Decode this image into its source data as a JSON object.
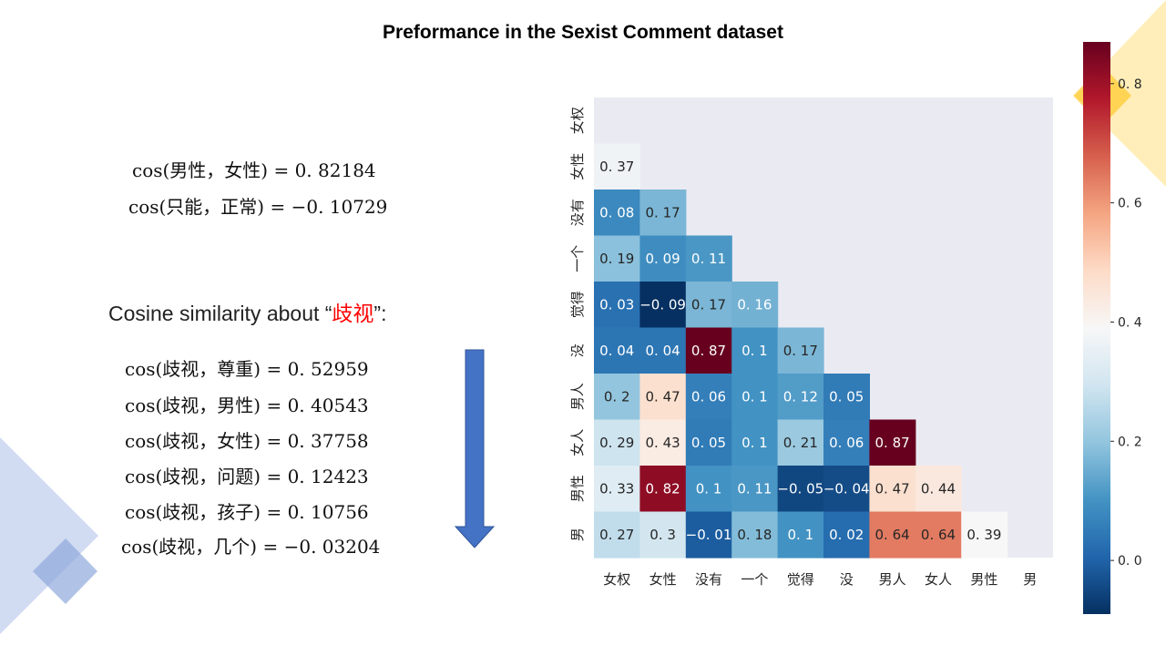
{
  "slide": {
    "title": "Preformance in the Sexist Comment dataset"
  },
  "formulas_top": [
    "cos(男性，女性) = 0. 82184",
    "cos(只能，正常) = −0. 10729"
  ],
  "subheading": {
    "prefix": "Cosine similarity about “",
    "keyword": "歧视",
    "suffix": "”:"
  },
  "formulas_list": [
    "cos(歧视，尊重) = 0. 52959",
    "cos(歧视，男性) = 0. 40543",
    "cos(歧视，女性) = 0. 37758",
    "cos(歧视，问题) = 0. 12423",
    "cos(歧视，孩子) = 0. 10756",
    "cos(歧视，几个) = −0. 03204"
  ],
  "colors": {
    "arrow": "#4472c4",
    "heatmap_bg": "#eaeaf2",
    "decor_blue": "#c9d5f0",
    "decor_yellow": "#ffd966",
    "keyword": "#ff0000"
  },
  "chart_data": {
    "type": "heatmap",
    "mask": "upper-triangle-including-diagonal",
    "labels": [
      "女权",
      "女性",
      "没有",
      "一个",
      "觉得",
      "没",
      "男人",
      "女人",
      "男性",
      "男"
    ],
    "matrix": [
      [
        null,
        null,
        null,
        null,
        null,
        null,
        null,
        null,
        null,
        null
      ],
      [
        0.37,
        null,
        null,
        null,
        null,
        null,
        null,
        null,
        null,
        null
      ],
      [
        0.08,
        0.17,
        null,
        null,
        null,
        null,
        null,
        null,
        null,
        null
      ],
      [
        0.19,
        0.09,
        0.11,
        null,
        null,
        null,
        null,
        null,
        null,
        null
      ],
      [
        0.03,
        -0.09,
        0.17,
        0.16,
        null,
        null,
        null,
        null,
        null,
        null
      ],
      [
        0.04,
        0.04,
        0.87,
        0.1,
        0.17,
        null,
        null,
        null,
        null,
        null
      ],
      [
        0.2,
        0.47,
        0.06,
        0.1,
        0.12,
        0.05,
        null,
        null,
        null,
        null
      ],
      [
        0.29,
        0.43,
        0.05,
        0.1,
        0.21,
        0.06,
        0.87,
        null,
        null,
        null
      ],
      [
        0.33,
        0.82,
        0.1,
        0.11,
        -0.05,
        -0.04,
        0.47,
        0.44,
        null,
        null
      ],
      [
        0.27,
        0.3,
        -0.01,
        0.18,
        0.1,
        0.02,
        0.64,
        0.64,
        0.39,
        null
      ]
    ],
    "cell_text": [
      [
        null,
        null,
        null,
        null,
        null,
        null,
        null,
        null,
        null,
        null
      ],
      [
        "0. 37",
        null,
        null,
        null,
        null,
        null,
        null,
        null,
        null,
        null
      ],
      [
        "0. 08",
        "0. 17",
        null,
        null,
        null,
        null,
        null,
        null,
        null,
        null
      ],
      [
        "0. 19",
        "0. 09",
        "0. 11",
        null,
        null,
        null,
        null,
        null,
        null,
        null
      ],
      [
        "0. 03",
        "−0. 09",
        "0. 17",
        "0. 16",
        null,
        null,
        null,
        null,
        null,
        null
      ],
      [
        "0. 04",
        "0. 04",
        "0. 87",
        "0. 1",
        "0. 17",
        null,
        null,
        null,
        null,
        null
      ],
      [
        "0. 2",
        "0. 47",
        "0. 06",
        "0. 1",
        "0. 12",
        "0. 05",
        null,
        null,
        null,
        null
      ],
      [
        "0. 29",
        "0. 43",
        "0. 05",
        "0. 1",
        "0. 21",
        "0. 06",
        "0. 87",
        null,
        null,
        null
      ],
      [
        "0. 33",
        "0. 82",
        "0. 1",
        "0. 11",
        "−0. 05",
        "−0. 04",
        "0. 47",
        "0. 44",
        null,
        null
      ],
      [
        "0. 27",
        "0. 3",
        "−0. 01",
        "0. 18",
        "0. 1",
        "0. 02",
        "0. 64",
        "0. 64",
        "0. 39",
        null
      ]
    ],
    "colormap": "RdBu_r",
    "vmin": -0.09,
    "vmax": 0.87,
    "colorbar": {
      "ticks": [
        0.0,
        0.2,
        0.4,
        0.6,
        0.8
      ],
      "tick_labels": [
        "0. 0",
        "0. 2",
        "0. 4",
        "0. 6",
        "0. 8"
      ]
    }
  }
}
